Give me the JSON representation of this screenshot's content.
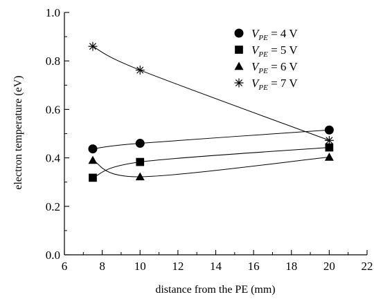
{
  "chart_data": {
    "type": "scatter",
    "xlabel": "distance from the PE (mm)",
    "ylabel": "electron temperature (eV)",
    "xlim": [
      6,
      22
    ],
    "ylim": [
      0.0,
      1.0
    ],
    "xticks": [
      "6",
      "8",
      "10",
      "12",
      "14",
      "16",
      "18",
      "20",
      "22"
    ],
    "yticks": [
      "0.0",
      "0.2",
      "0.4",
      "0.6",
      "0.8",
      "1.0"
    ],
    "grid": false,
    "legend_position": "top-right",
    "series": [
      {
        "label_prefix": "V",
        "label_sub": "PE",
        "label_suffix": " = 4 V",
        "marker": "circle",
        "x": [
          7.5,
          10,
          20
        ],
        "y": [
          0.437,
          0.46,
          0.515
        ]
      },
      {
        "label_prefix": "V",
        "label_sub": "PE",
        "label_suffix": " = 5 V",
        "marker": "square",
        "x": [
          7.5,
          10,
          20
        ],
        "y": [
          0.318,
          0.383,
          0.443
        ]
      },
      {
        "label_prefix": "V",
        "label_sub": "PE",
        "label_suffix": " = 6 V",
        "marker": "triangle",
        "x": [
          7.5,
          10,
          20
        ],
        "y": [
          0.39,
          0.322,
          0.403
        ]
      },
      {
        "label_prefix": "V",
        "label_sub": "PE",
        "label_suffix": " = 7 V",
        "marker": "asterisk",
        "x": [
          7.5,
          10,
          20
        ],
        "y": [
          0.86,
          0.762,
          0.472
        ]
      }
    ]
  }
}
